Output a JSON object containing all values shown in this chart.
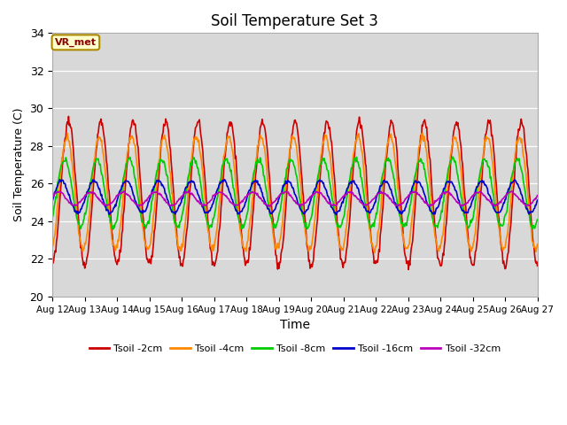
{
  "title": "Soil Temperature Set 3",
  "xlabel": "Time",
  "ylabel": "Soil Temperature (C)",
  "ylim": [
    20,
    34
  ],
  "x_tick_labels": [
    "Aug 12",
    "Aug 13",
    "Aug 14",
    "Aug 15",
    "Aug 16",
    "Aug 17",
    "Aug 18",
    "Aug 19",
    "Aug 20",
    "Aug 21",
    "Aug 22",
    "Aug 23",
    "Aug 24",
    "Aug 25",
    "Aug 26",
    "Aug 27"
  ],
  "series_colors": [
    "#cc0000",
    "#ff8800",
    "#00cc00",
    "#0000cc",
    "#bb00bb"
  ],
  "series_labels": [
    "Tsoil -2cm",
    "Tsoil -4cm",
    "Tsoil -8cm",
    "Tsoil -16cm",
    "Tsoil -32cm"
  ],
  "fig_bg_color": "#ffffff",
  "plot_bg_color": "#d8d8d8",
  "annotation_text": "VR_met",
  "annotation_bg": "#ffffcc",
  "annotation_border": "#aa8800",
  "n_days": 15,
  "samples_per_day": 48,
  "base_temp": 25.5,
  "amp_2cm": 3.8,
  "amp_4cm": 3.0,
  "amp_8cm": 1.8,
  "amp_16cm": 0.85,
  "amp_32cm": 0.35,
  "phase_2cm": -1.5708,
  "phase_4cm": -1.25,
  "phase_8cm": -0.8,
  "phase_16cm": -0.2,
  "phase_32cm": 0.4,
  "mean_2cm": 25.5,
  "mean_4cm": 25.5,
  "mean_8cm": 25.5,
  "mean_16cm": 25.3,
  "mean_32cm": 25.2,
  "yticks": [
    20,
    22,
    24,
    26,
    28,
    30,
    32,
    34
  ]
}
